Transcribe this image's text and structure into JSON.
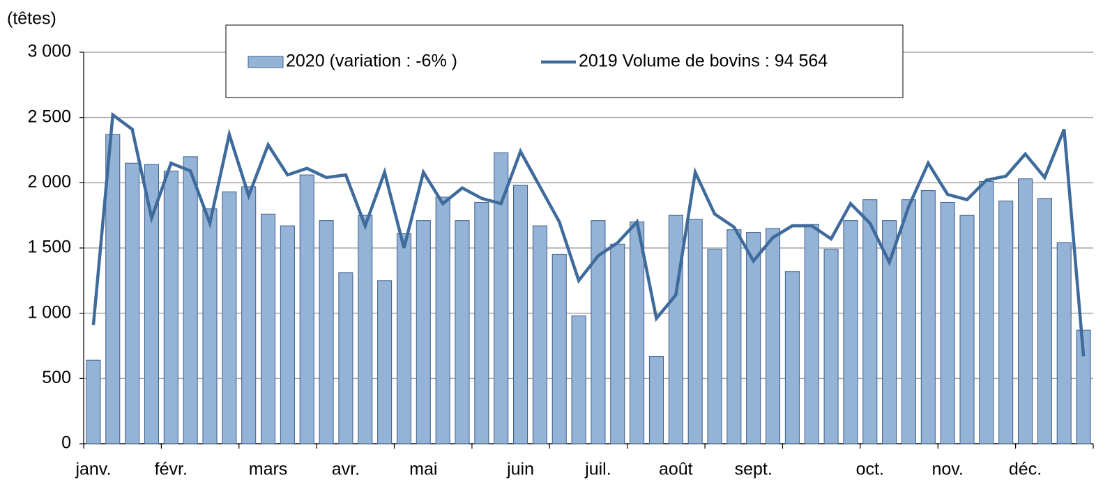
{
  "chart_data": {
    "type": "bar-line",
    "y_label": "(têtes)",
    "categories": [
      "janv.",
      null,
      null,
      null,
      "févr.",
      null,
      null,
      null,
      null,
      "mars",
      null,
      null,
      null,
      "avr.",
      null,
      null,
      null,
      "mai",
      null,
      null,
      null,
      null,
      "juin",
      null,
      null,
      null,
      "juil.",
      null,
      null,
      null,
      "août",
      null,
      null,
      null,
      "sept.",
      null,
      null,
      null,
      null,
      null,
      "oct.",
      null,
      null,
      null,
      "nov.",
      null,
      null,
      null,
      "déc.",
      null,
      null,
      null
    ],
    "series": [
      {
        "name": "2020 (variation : -6% )",
        "color": "#95b3d7",
        "kind": "bar",
        "values": [
          640,
          2370,
          2150,
          2140,
          2090,
          2200,
          1800,
          1930,
          1970,
          1760,
          1670,
          2060,
          1710,
          1310,
          1750,
          1250,
          1610,
          1710,
          1890,
          1710,
          1850,
          2230,
          1980,
          1670,
          1450,
          980,
          1710,
          1530,
          1700,
          670,
          1750,
          1720,
          1490,
          1640,
          1620,
          1650,
          1320,
          1680,
          1490,
          1710,
          1870,
          1710,
          1870,
          1940,
          1850,
          1750,
          2010,
          1860,
          2030,
          1880,
          1540,
          870
        ]
      },
      {
        "name": "2019 Volume de bovins :  94 564",
        "color": "#3f6b9c",
        "kind": "line",
        "values": [
          910,
          2520,
          2410,
          1730,
          2150,
          2090,
          1690,
          2370,
          1900,
          2290,
          2060,
          2110,
          2040,
          2060,
          1670,
          2080,
          1500,
          2080,
          1840,
          1960,
          1880,
          1840,
          2240,
          1970,
          1700,
          1250,
          1440,
          1540,
          1700,
          960,
          1140,
          2080,
          1760,
          1660,
          1400,
          1580,
          1670,
          1670,
          1570,
          1840,
          1690,
          1390,
          1820,
          2150,
          1910,
          1870,
          2020,
          2050,
          2220,
          2040,
          2410,
          670
        ]
      }
    ],
    "ylim": [
      0,
      3000
    ],
    "yticks": [
      0,
      500,
      {
        "value": 1000,
        "label": "1 000"
      },
      {
        "value": 1500,
        "label": "1 500"
      },
      {
        "value": 2000,
        "label": "2 000"
      },
      {
        "value": 2500,
        "label": "2 500"
      },
      {
        "value": 3000,
        "label": "3 000"
      }
    ],
    "grid": true
  }
}
